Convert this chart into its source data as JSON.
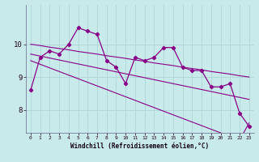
{
  "xlabel": "Windchill (Refroidissement éolien,°C)",
  "background_color": "#c8eaea",
  "grid_color": "#b0d8d8",
  "line_color": "#880088",
  "hours": [
    0,
    1,
    2,
    3,
    4,
    5,
    6,
    7,
    8,
    9,
    10,
    11,
    12,
    13,
    14,
    15,
    16,
    17,
    18,
    19,
    20,
    21,
    22,
    23
  ],
  "windchill": [
    8.6,
    9.6,
    9.8,
    9.7,
    10.0,
    10.5,
    10.4,
    10.3,
    9.5,
    9.3,
    8.8,
    9.6,
    9.5,
    9.6,
    9.9,
    9.9,
    9.3,
    9.2,
    9.2,
    8.7,
    8.7,
    8.8,
    7.9,
    7.5
  ],
  "trend1": [
    10.0,
    9.96,
    9.91,
    9.87,
    9.83,
    9.78,
    9.74,
    9.7,
    9.65,
    9.61,
    9.57,
    9.52,
    9.48,
    9.43,
    9.39,
    9.35,
    9.3,
    9.26,
    9.22,
    9.17,
    9.13,
    9.09,
    9.04,
    9.0
  ],
  "trend2": [
    9.7,
    9.64,
    9.58,
    9.52,
    9.46,
    9.4,
    9.34,
    9.28,
    9.22,
    9.16,
    9.1,
    9.04,
    8.98,
    8.92,
    8.86,
    8.8,
    8.74,
    8.68,
    8.62,
    8.56,
    8.5,
    8.44,
    8.38,
    8.32
  ],
  "trend3": [
    9.5,
    9.39,
    9.28,
    9.17,
    9.06,
    8.95,
    8.84,
    8.73,
    8.62,
    8.51,
    8.4,
    8.29,
    8.18,
    8.07,
    7.96,
    7.85,
    7.74,
    7.63,
    7.52,
    7.41,
    7.3,
    7.19,
    7.08,
    7.6
  ],
  "ylim": [
    7.3,
    11.2
  ],
  "yticks": [
    8,
    9,
    10
  ],
  "xticks": [
    0,
    1,
    2,
    3,
    4,
    5,
    6,
    7,
    8,
    9,
    10,
    11,
    12,
    13,
    14,
    15,
    16,
    17,
    18,
    19,
    20,
    21,
    22,
    23
  ]
}
